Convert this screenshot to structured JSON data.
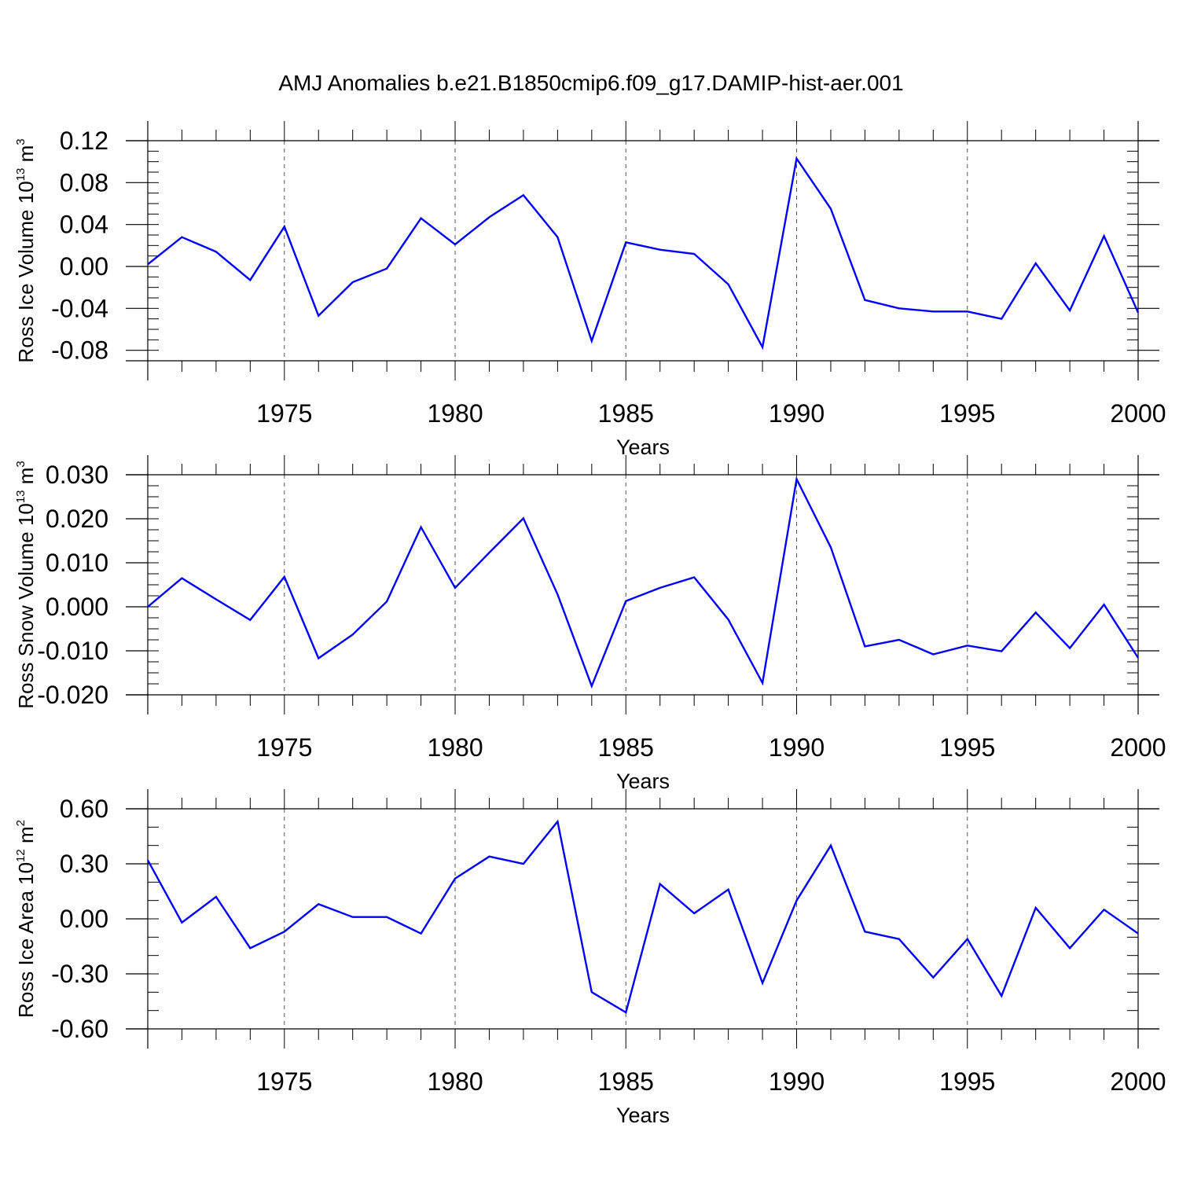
{
  "title": "AMJ Anomalies b.e21.B1850cmip6.f09_g17.DAMIP-hist-aer.001",
  "colors": {
    "line": "#0000ff",
    "axis": "#000000",
    "grid": "#555555",
    "background": "#ffffff"
  },
  "chart_data": [
    {
      "type": "line",
      "xlabel": "Years",
      "ylabel": {
        "text": "Ross Ice Volume 10",
        "exp": "13",
        "unit": " m",
        "unit_exp": "3"
      },
      "xlim": [
        1971,
        2000
      ],
      "ylim": [
        -0.09,
        0.12
      ],
      "ytick_values": [
        -0.08,
        -0.04,
        0.0,
        0.04,
        0.08,
        0.12
      ],
      "ytick_labels": [
        "-0.08",
        "-0.04",
        "0.00",
        "0.04",
        "0.08",
        "0.12"
      ],
      "yminor_step": 0.01,
      "xtick_values": [
        1975,
        1980,
        1985,
        1990,
        1995,
        2000
      ],
      "xtick_labels": [
        "1975",
        "1980",
        "1985",
        "1990",
        "1995",
        "2000"
      ],
      "grid": "vertical-dashed",
      "x": [
        1971,
        1972,
        1973,
        1974,
        1975,
        1976,
        1977,
        1978,
        1979,
        1980,
        1981,
        1982,
        1983,
        1984,
        1985,
        1986,
        1987,
        1988,
        1989,
        1990,
        1991,
        1992,
        1993,
        1994,
        1995,
        1996,
        1997,
        1998,
        1999,
        2000
      ],
      "series": [
        {
          "values": [
            0.002,
            0.028,
            0.014,
            -0.013,
            0.038,
            -0.047,
            -0.015,
            -0.002,
            0.046,
            0.021,
            0.047,
            0.068,
            0.028,
            -0.071,
            0.023,
            0.016,
            0.012,
            -0.017,
            -0.077,
            0.103,
            0.055,
            -0.032,
            -0.04,
            -0.043,
            -0.043,
            -0.05,
            0.003,
            -0.042,
            0.029,
            -0.044
          ]
        }
      ]
    },
    {
      "type": "line",
      "xlabel": "Years",
      "ylabel": {
        "text": "Ross Snow Volume 10",
        "exp": "13",
        "unit": " m",
        "unit_exp": "3"
      },
      "xlim": [
        1971,
        2000
      ],
      "ylim": [
        -0.02,
        0.03
      ],
      "ytick_values": [
        -0.02,
        -0.01,
        0.0,
        0.01,
        0.02,
        0.03
      ],
      "ytick_labels": [
        "-0.020",
        "-0.010",
        "0.000",
        "0.010",
        "0.020",
        "0.030"
      ],
      "yminor_step": 0.0025,
      "xtick_values": [
        1975,
        1980,
        1985,
        1990,
        1995,
        2000
      ],
      "xtick_labels": [
        "1975",
        "1980",
        "1985",
        "1990",
        "1995",
        "2000"
      ],
      "grid": "vertical-dashed",
      "x": [
        1971,
        1972,
        1973,
        1974,
        1975,
        1976,
        1977,
        1978,
        1979,
        1980,
        1981,
        1982,
        1983,
        1984,
        1985,
        1986,
        1987,
        1988,
        1989,
        1990,
        1991,
        1992,
        1993,
        1994,
        1995,
        1996,
        1997,
        1998,
        1999,
        2000
      ],
      "series": [
        {
          "values": [
            0.0,
            0.0065,
            0.0017,
            -0.003,
            0.0068,
            -0.0117,
            -0.0063,
            0.0012,
            0.0181,
            0.0043,
            0.0123,
            0.0201,
            0.0028,
            -0.018,
            0.0013,
            0.0043,
            0.0067,
            -0.0029,
            -0.0173,
            0.029,
            0.0135,
            -0.009,
            -0.0075,
            -0.0108,
            -0.0088,
            -0.0101,
            -0.0013,
            -0.0094,
            0.0005,
            -0.0116
          ]
        }
      ]
    },
    {
      "type": "line",
      "xlabel": "Years",
      "ylabel": {
        "text": "Ross Ice Area 10",
        "exp": "12",
        "unit": " m",
        "unit_exp": "2"
      },
      "xlim": [
        1971,
        2000
      ],
      "ylim": [
        -0.6,
        0.6
      ],
      "ytick_values": [
        -0.6,
        -0.3,
        0.0,
        0.3,
        0.6
      ],
      "ytick_labels": [
        "-0.60",
        "-0.30",
        "0.00",
        "0.30",
        "0.60"
      ],
      "yminor_step": 0.1,
      "xtick_values": [
        1975,
        1980,
        1985,
        1990,
        1995,
        2000
      ],
      "xtick_labels": [
        "1975",
        "1980",
        "1985",
        "1990",
        "1995",
        "2000"
      ],
      "grid": "vertical-dashed",
      "x": [
        1971,
        1972,
        1973,
        1974,
        1975,
        1976,
        1977,
        1978,
        1979,
        1980,
        1981,
        1982,
        1983,
        1984,
        1985,
        1986,
        1987,
        1988,
        1989,
        1990,
        1991,
        1992,
        1993,
        1994,
        1995,
        1996,
        1997,
        1998,
        1999,
        2000
      ],
      "series": [
        {
          "values": [
            0.32,
            -0.02,
            0.12,
            -0.16,
            -0.07,
            0.08,
            0.01,
            0.01,
            -0.08,
            0.22,
            0.34,
            0.3,
            0.53,
            -0.4,
            -0.51,
            0.19,
            0.03,
            0.16,
            -0.35,
            0.1,
            0.4,
            -0.07,
            -0.11,
            -0.32,
            -0.11,
            -0.42,
            0.06,
            -0.16,
            0.05,
            -0.08
          ]
        }
      ]
    }
  ]
}
